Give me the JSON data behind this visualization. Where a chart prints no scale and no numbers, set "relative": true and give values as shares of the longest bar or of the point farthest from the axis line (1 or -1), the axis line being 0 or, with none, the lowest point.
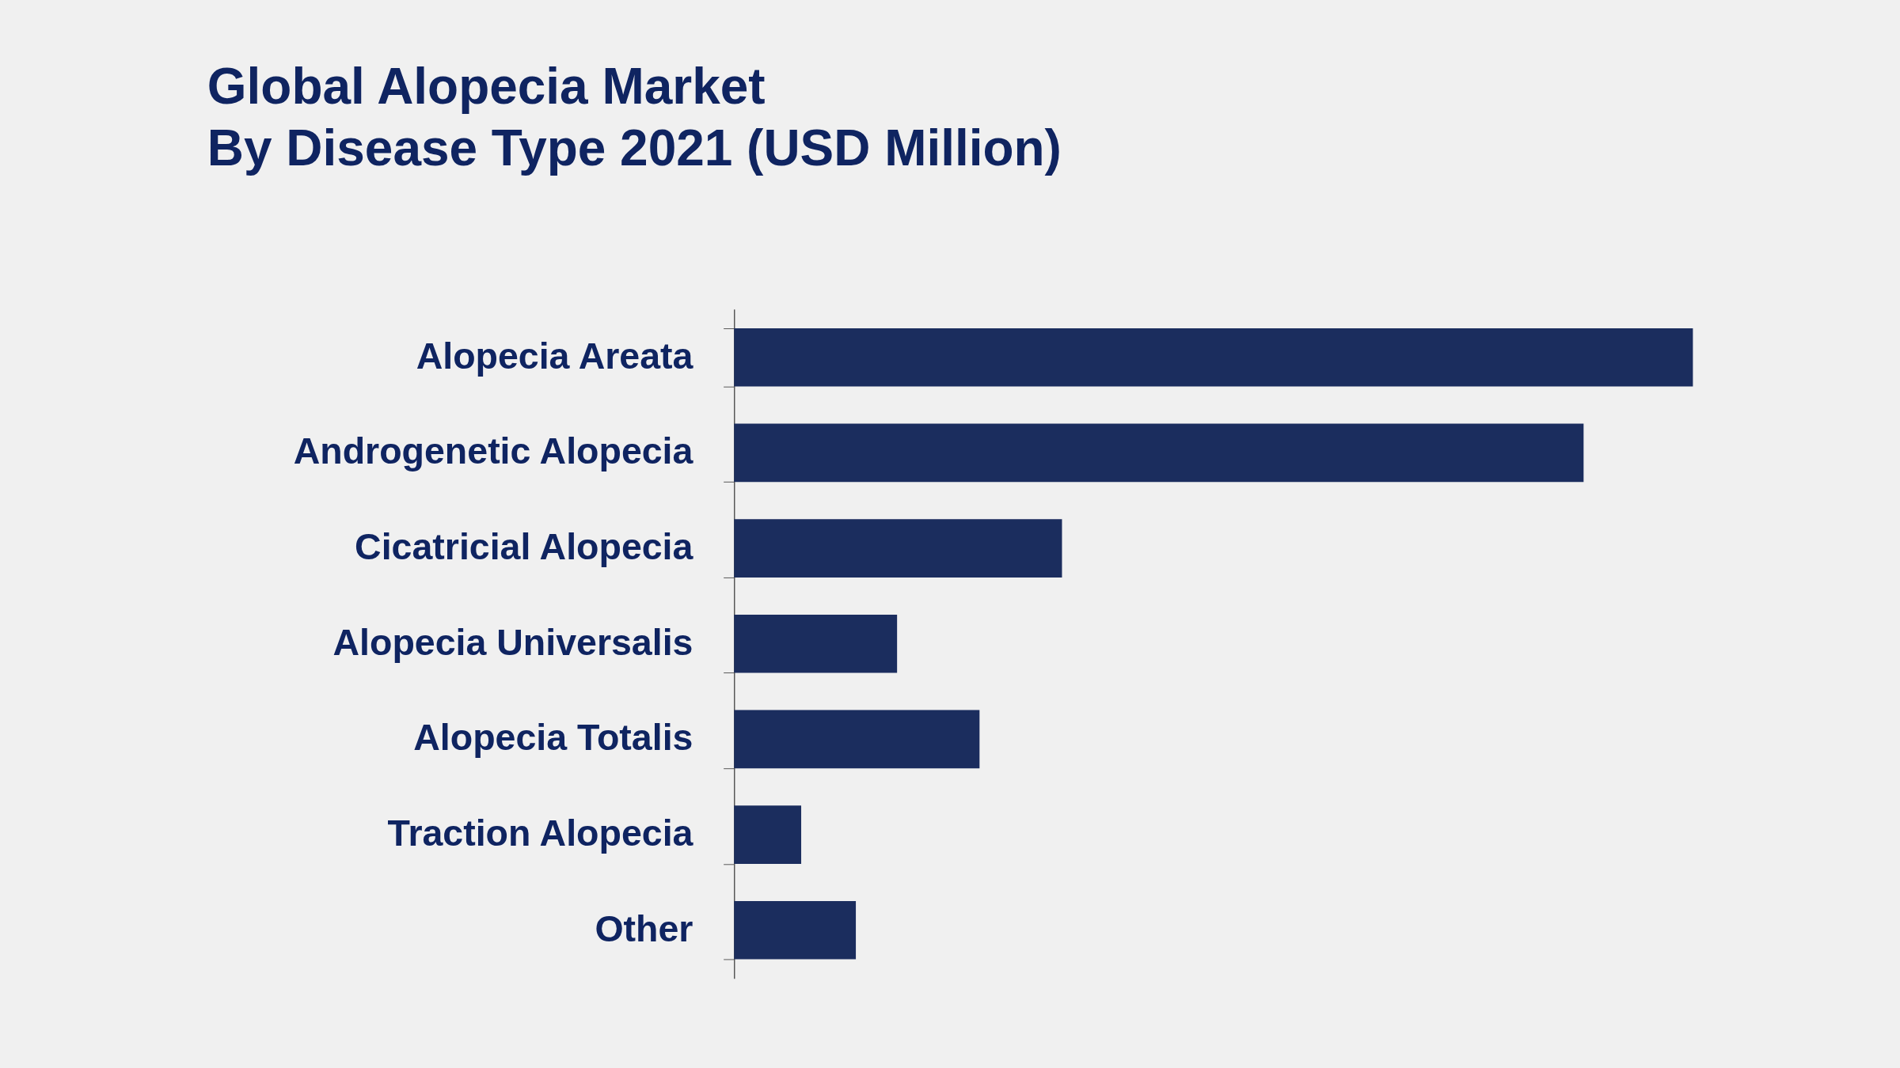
{
  "chart_data": {
    "type": "bar",
    "orientation": "horizontal",
    "relative": true,
    "title": [
      "Global Alopecia Market",
      "By Disease Type 2021 (USD Million)"
    ],
    "categories": [
      "Alopecia Areata",
      "Androgenetic Alopecia",
      "Cicatricial Alopecia",
      "Alopecia Universalis",
      "Alopecia Totalis",
      "Traction Alopecia",
      "Other"
    ],
    "values": [
      1,
      0.886,
      0.342,
      0.17,
      0.256,
      0.07,
      0.127
    ],
    "color": "#1b2d5e"
  }
}
